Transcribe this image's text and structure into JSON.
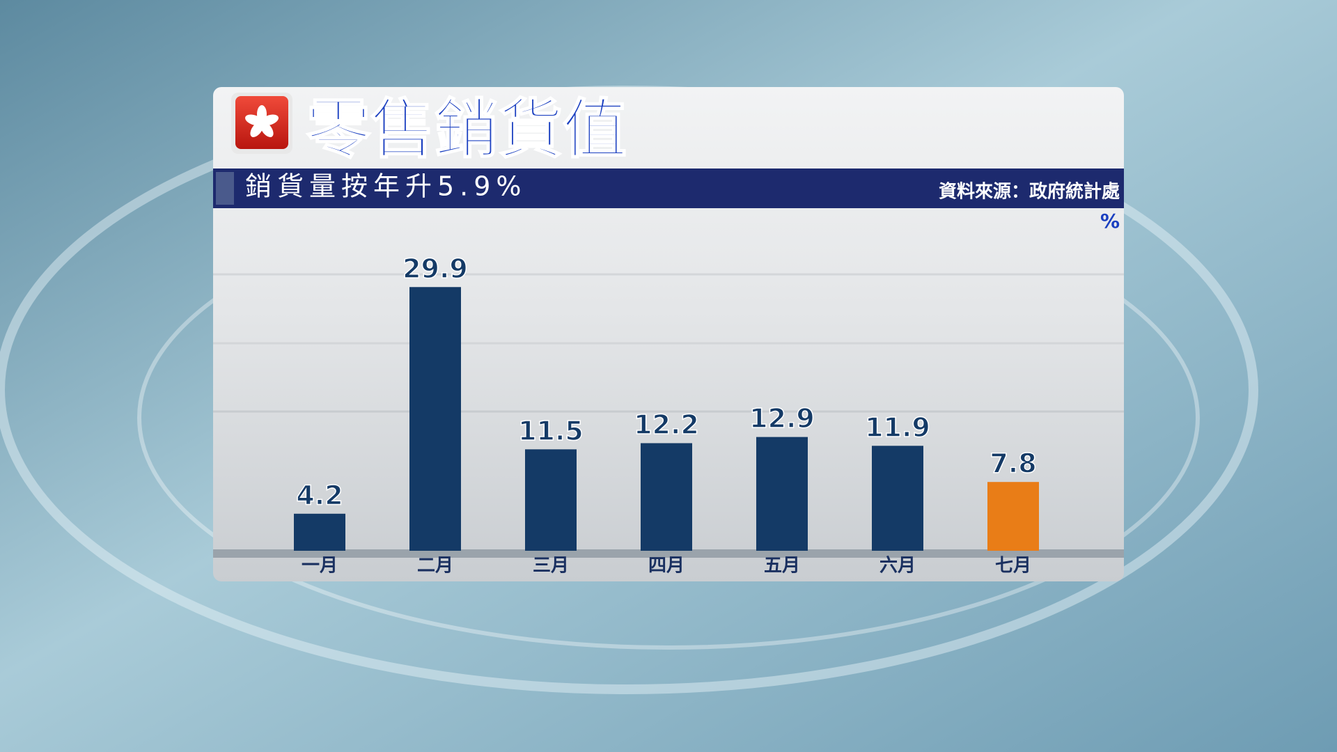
{
  "chart_data": {
    "type": "bar",
    "title": "零售銷貨值",
    "subtitle": "銷貨量按年升5.9%",
    "source": "資料來源：政府統計處",
    "unit": "%",
    "categories": [
      "一月",
      "二月",
      "三月",
      "四月",
      "五月",
      "六月",
      "七月"
    ],
    "values": [
      4.2,
      29.9,
      11.5,
      12.2,
      12.9,
      11.9,
      7.8
    ],
    "colors": [
      "#143a66",
      "#143a66",
      "#143a66",
      "#143a66",
      "#143a66",
      "#143a66",
      "#e97d17"
    ],
    "ylim": [
      0,
      30
    ]
  }
}
